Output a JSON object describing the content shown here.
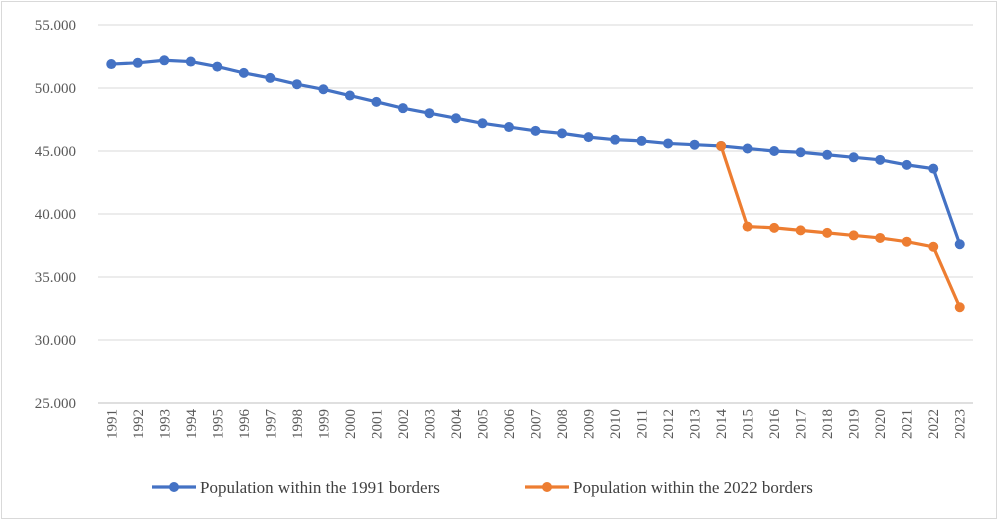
{
  "chart_data": {
    "type": "line",
    "title": "",
    "xlabel": "",
    "ylabel": "",
    "ylim": [
      25,
      55
    ],
    "yticks": [
      25,
      30,
      35,
      40,
      45,
      50,
      55
    ],
    "ytick_labels": [
      "25.000",
      "30.000",
      "35.000",
      "40.000",
      "45.000",
      "50.000",
      "55.000"
    ],
    "grid": "horizontal",
    "legend": "bottom",
    "categories": [
      "1991",
      "1992",
      "1993",
      "1994",
      "1995",
      "1996",
      "1997",
      "1998",
      "1999",
      "2000",
      "2001",
      "2002",
      "2003",
      "2004",
      "2005",
      "2006",
      "2007",
      "2008",
      "2009",
      "2010",
      "2011",
      "2012",
      "2013",
      "2014",
      "2015",
      "2016",
      "2017",
      "2018",
      "2019",
      "2020",
      "2021",
      "2022",
      "2023"
    ],
    "series": [
      {
        "name": "Population within the 1991 borders",
        "color": "#4472c4",
        "values": [
          51.9,
          52.0,
          52.2,
          52.1,
          51.7,
          51.2,
          50.8,
          50.3,
          49.9,
          49.4,
          48.9,
          48.4,
          48.0,
          47.6,
          47.2,
          46.9,
          46.6,
          46.4,
          46.1,
          45.9,
          45.8,
          45.6,
          45.5,
          45.4,
          45.2,
          45.0,
          44.9,
          44.7,
          44.5,
          44.3,
          43.9,
          43.6,
          37.6
        ]
      },
      {
        "name": "Population within the 2022 borders",
        "color": "#ed7d31",
        "values": [
          null,
          null,
          null,
          null,
          null,
          null,
          null,
          null,
          null,
          null,
          null,
          null,
          null,
          null,
          null,
          null,
          null,
          null,
          null,
          null,
          null,
          null,
          null,
          45.4,
          39.0,
          38.9,
          38.7,
          38.5,
          38.3,
          38.1,
          37.8,
          37.4,
          32.6
        ]
      }
    ]
  }
}
